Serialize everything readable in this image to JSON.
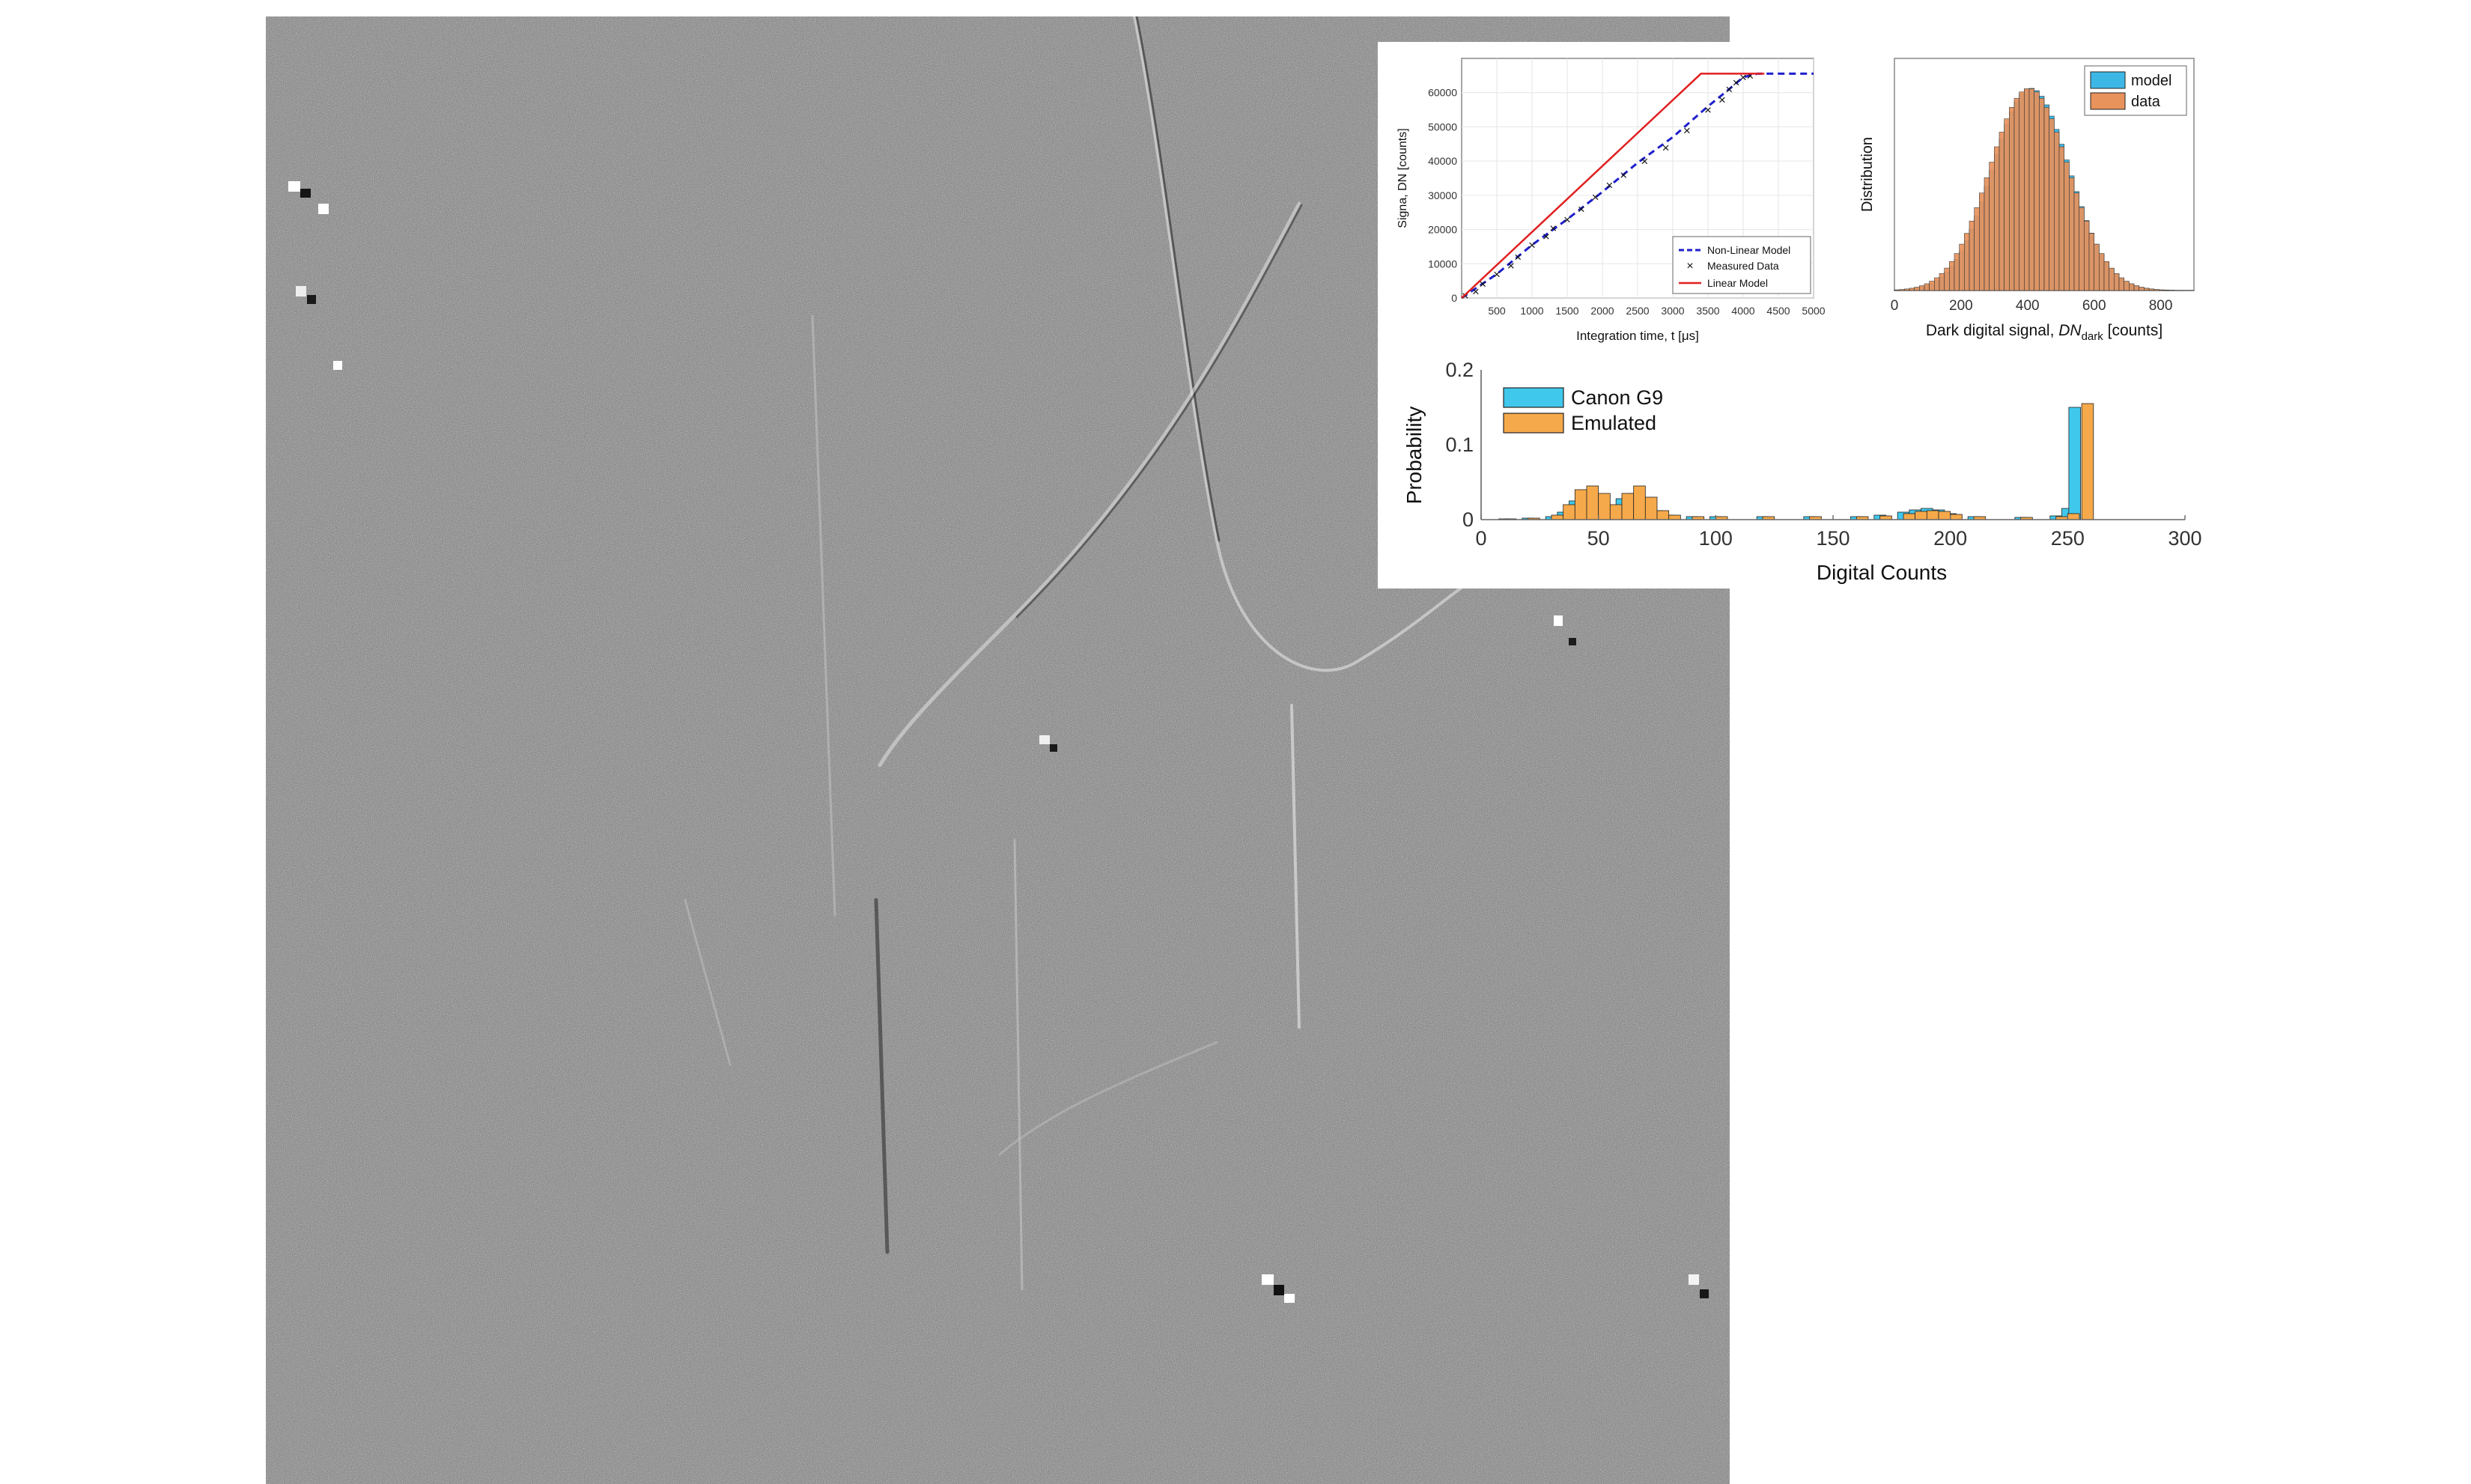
{
  "background_image": {
    "description_kind": "grayscale-noise-texture",
    "tone": "#808080"
  },
  "chart_data": [
    {
      "type": "line",
      "xlabel": "Integration time, t [μs]",
      "ylabel": "Signa, DN [counts]",
      "xlim": [
        0,
        5000
      ],
      "ylim": [
        0,
        70000
      ],
      "xticks": [
        500,
        1000,
        1500,
        2000,
        2500,
        3000,
        3500,
        4000,
        4500,
        5000
      ],
      "yticks": [
        0,
        10000,
        20000,
        30000,
        40000,
        50000,
        60000
      ],
      "grid": true,
      "legend_position": "bottom-right",
      "series": [
        {
          "name": "Non-Linear Model",
          "style": "dashed",
          "color": "#1f1fcc",
          "x": [
            0,
            500,
            1000,
            1500,
            2000,
            2500,
            3000,
            3500,
            3800,
            4000,
            4200,
            5000
          ],
          "y": [
            0,
            7000,
            15500,
            23000,
            31000,
            39500,
            47000,
            56000,
            61000,
            64500,
            65535,
            65535
          ]
        },
        {
          "name": "Measured Data",
          "style": "marker-x",
          "color": "#111111",
          "x": [
            50,
            200,
            300,
            500,
            700,
            800,
            1000,
            1200,
            1300,
            1500,
            1700,
            1900,
            2100,
            2300,
            2600,
            2900,
            3200,
            3500,
            3700,
            3800,
            3900,
            4000,
            4100
          ],
          "y": [
            800,
            2000,
            4200,
            7000,
            9500,
            12000,
            15500,
            18000,
            20500,
            23000,
            26000,
            29500,
            33000,
            36000,
            40000,
            44000,
            49000,
            55000,
            58000,
            61000,
            63000,
            64500,
            65000
          ]
        },
        {
          "name": "Linear Model",
          "style": "solid",
          "color": "#e02020",
          "x": [
            0,
            3400,
            3400,
            4300
          ],
          "y": [
            0,
            65535,
            65535,
            65535
          ]
        }
      ]
    },
    {
      "type": "bar",
      "xlabel": "Dark digital signal, DN_dark [counts]",
      "ylabel": "Distribution",
      "xlim": [
        0,
        900
      ],
      "xticks": [
        0,
        200,
        400,
        600,
        800
      ],
      "yticks": [],
      "legend_position": "top-right",
      "bins": {
        "start": 0,
        "width": 15,
        "count": 60
      },
      "series": [
        {
          "name": "model",
          "color": "#3db8e6",
          "distribution": {
            "mean": 410,
            "std": 115
          }
        },
        {
          "name": "data",
          "color": "#e8925c",
          "distribution": {
            "mean": 405,
            "std": 118
          }
        }
      ]
    },
    {
      "type": "bar",
      "xlabel": "Digital Counts",
      "ylabel": "Probability",
      "xlim": [
        0,
        300
      ],
      "ylim": [
        0,
        0.2
      ],
      "xticks": [
        0,
        50,
        100,
        150,
        200,
        250,
        300
      ],
      "yticks": [
        0,
        0.1,
        0.2
      ],
      "legend_position": "top-left",
      "series": [
        {
          "name": "Canon G9",
          "color": "#3fc8ec",
          "x": [
            10,
            20,
            30,
            35,
            40,
            45,
            50,
            55,
            60,
            65,
            70,
            75,
            80,
            90,
            100,
            120,
            140,
            160,
            170,
            180,
            185,
            190,
            195,
            200,
            210,
            230,
            245,
            250,
            253
          ],
          "y": [
            0.001,
            0.002,
            0.004,
            0.01,
            0.025,
            0.035,
            0.03,
            0.018,
            0.028,
            0.035,
            0.025,
            0.012,
            0.006,
            0.004,
            0.004,
            0.004,
            0.004,
            0.004,
            0.006,
            0.01,
            0.013,
            0.015,
            0.013,
            0.008,
            0.004,
            0.003,
            0.005,
            0.015,
            0.15
          ]
        },
        {
          "name": "Emulated",
          "color": "#f6a94a",
          "x": [
            10,
            20,
            30,
            35,
            40,
            45,
            50,
            55,
            60,
            65,
            70,
            75,
            80,
            90,
            100,
            120,
            140,
            160,
            170,
            180,
            185,
            190,
            195,
            200,
            210,
            230,
            245,
            250,
            256
          ],
          "y": [
            0.001,
            0.002,
            0.006,
            0.02,
            0.04,
            0.045,
            0.035,
            0.02,
            0.035,
            0.045,
            0.03,
            0.012,
            0.006,
            0.004,
            0.004,
            0.004,
            0.004,
            0.004,
            0.005,
            0.008,
            0.011,
            0.012,
            0.011,
            0.007,
            0.004,
            0.003,
            0.004,
            0.008,
            0.155
          ]
        }
      ]
    }
  ]
}
